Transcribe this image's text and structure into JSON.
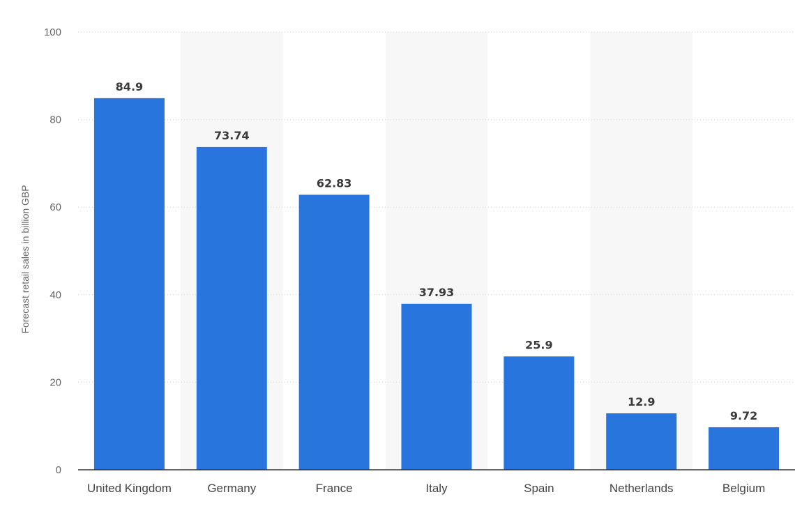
{
  "chart_data": {
    "type": "bar",
    "title": "",
    "xlabel": "",
    "ylabel": "Forecast retail sales in billion GBP",
    "categories": [
      "United Kingdom",
      "Germany",
      "France",
      "Italy",
      "Spain",
      "Netherlands",
      "Belgium"
    ],
    "values": [
      84.9,
      73.74,
      62.83,
      37.93,
      25.9,
      12.9,
      9.72
    ],
    "value_labels": [
      "84.9",
      "73.74",
      "62.83",
      "37.93",
      "25.9",
      "12.9",
      "9.72"
    ],
    "ylim": [
      0,
      100
    ],
    "yticks": [
      0,
      20,
      40,
      60,
      80,
      100
    ],
    "ytick_labels": [
      "0",
      "20",
      "40",
      "60",
      "80",
      "100"
    ],
    "grid": true,
    "legend": "none",
    "alternating_band_columns": [
      1,
      3,
      5
    ],
    "colors": {
      "bar": "#2876dd",
      "band": "#f7f7f7",
      "grid": "#cfcfcf",
      "axis": "#333333"
    }
  }
}
